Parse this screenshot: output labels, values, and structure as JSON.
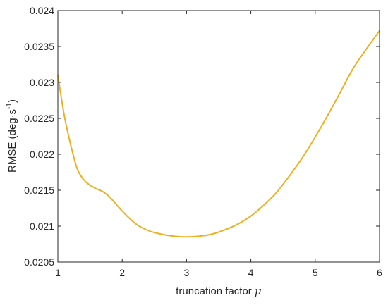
{
  "chart_data": {
    "type": "line",
    "title": "",
    "xlabel": "truncation factor",
    "xlabel_symbol": "μ",
    "ylabel": "RMSE (deg·s",
    "ylabel_sup": "-1",
    "ylabel_close": ")",
    "xlim": [
      1,
      6
    ],
    "ylim": [
      0.0205,
      0.024
    ],
    "xticks": [
      1,
      2,
      3,
      4,
      5,
      6
    ],
    "xtick_labels": [
      "1",
      "2",
      "3",
      "4",
      "5",
      "6"
    ],
    "yticks": [
      0.0205,
      0.021,
      0.0215,
      0.022,
      0.0225,
      0.023,
      0.0235,
      0.024
    ],
    "ytick_labels": [
      "0.0205",
      "0.021",
      "0.0215",
      "0.022",
      "0.0225",
      "0.023",
      "0.0235",
      "0.024"
    ],
    "grid": false,
    "line_color": "#EDB120",
    "series": [
      {
        "x": [
          1.0,
          1.1,
          1.2,
          1.3,
          1.4,
          1.5,
          1.6,
          1.7,
          1.8,
          1.9,
          2.0,
          2.2,
          2.4,
          2.6,
          2.8,
          3.0,
          3.2,
          3.4,
          3.6,
          3.8,
          4.0,
          4.2,
          4.4,
          4.6,
          4.8,
          5.0,
          5.2,
          5.4,
          5.6,
          5.8,
          6.0
        ],
        "y": [
          0.0231,
          0.02254,
          0.02213,
          0.0218,
          0.02165,
          0.02157,
          0.02152,
          0.02148,
          0.02141,
          0.02131,
          0.02121,
          0.02104,
          0.02094,
          0.02089,
          0.02086,
          0.02085,
          0.02086,
          0.02089,
          0.02095,
          0.02103,
          0.02114,
          0.02129,
          0.02147,
          0.0217,
          0.02195,
          0.02224,
          0.02255,
          0.02288,
          0.02321,
          0.02347,
          0.02372
        ]
      }
    ]
  }
}
